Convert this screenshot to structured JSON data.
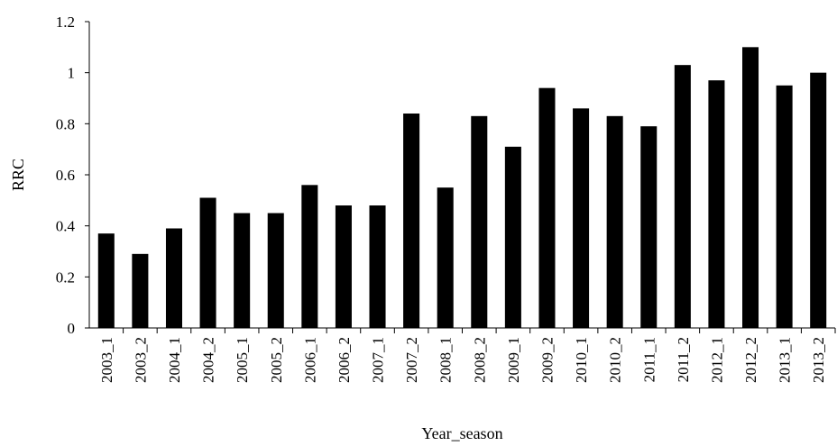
{
  "chart_data": {
    "type": "bar",
    "title": "",
    "xlabel": "Year_season",
    "ylabel": "RRC",
    "ylim": [
      0,
      1.2
    ],
    "yticks": [
      "0",
      "0.2",
      "0.4",
      "0.6",
      "0.8",
      "1",
      "1.2"
    ],
    "grid": false,
    "legend": "none",
    "bar_color": "#000000",
    "categories": [
      "2003_1",
      "2003_2",
      "2004_1",
      "2004_2",
      "2005_1",
      "2005_2",
      "2006_1",
      "2006_2",
      "2007_1",
      "2007_2",
      "2008_1",
      "2008_2",
      "2009_1",
      "2009_2",
      "2010_1",
      "2010_2",
      "2011_1",
      "2011_2",
      "2012_1",
      "2012_2",
      "2013_1",
      "2013_2"
    ],
    "values": [
      0.37,
      0.29,
      0.39,
      0.51,
      0.45,
      0.45,
      0.56,
      0.48,
      0.48,
      0.84,
      0.55,
      0.83,
      0.71,
      0.94,
      0.86,
      0.83,
      0.79,
      1.03,
      0.97,
      1.1,
      0.95,
      1.0
    ]
  }
}
